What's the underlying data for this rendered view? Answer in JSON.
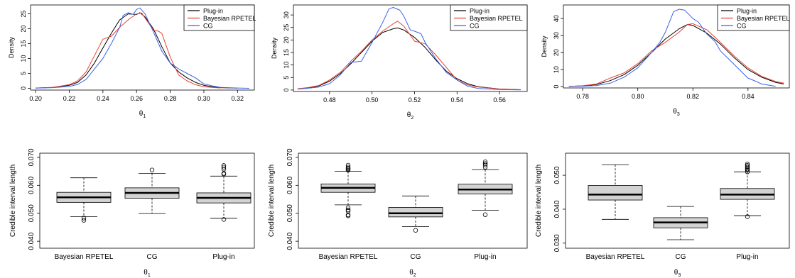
{
  "chart_data": [
    {
      "type": "line",
      "xlabel_base": "θ",
      "xlabel_sub": "1",
      "ylabel": "Density",
      "xlim": [
        0.197,
        0.33
      ],
      "ylim": [
        -0.6,
        28
      ],
      "xticks": [
        0.2,
        0.22,
        0.24,
        0.26,
        0.28,
        0.3,
        0.32
      ],
      "xtick_labels": [
        "0.20",
        "0.22",
        "0.24",
        "0.26",
        "0.28",
        "0.30",
        "0.32"
      ],
      "yticks": [
        0,
        5,
        10,
        15,
        20,
        25
      ],
      "ytick_labels": [
        "0",
        "5",
        "10",
        "15",
        "20",
        "25"
      ],
      "legend_position": "top-right",
      "series": [
        {
          "name": "Plug-in",
          "color": "#000000",
          "x": [
            0.2,
            0.21,
            0.22,
            0.225,
            0.23,
            0.235,
            0.24,
            0.245,
            0.25,
            0.255,
            0.26,
            0.262,
            0.265,
            0.27,
            0.275,
            0.28,
            0.285,
            0.29,
            0.295,
            0.3,
            0.305,
            0.31,
            0.32
          ],
          "y": [
            0.1,
            0.3,
            1.0,
            2.0,
            4.5,
            8.5,
            13.5,
            18.5,
            23.0,
            25.0,
            24.8,
            25.4,
            24.0,
            20.0,
            14.0,
            8.5,
            5.5,
            3.5,
            2.0,
            1.0,
            0.5,
            0.2,
            0.05
          ]
        },
        {
          "name": "Bayesian RPETEL",
          "color": "#e8432e",
          "x": [
            0.2,
            0.21,
            0.22,
            0.225,
            0.23,
            0.235,
            0.24,
            0.245,
            0.25,
            0.255,
            0.26,
            0.263,
            0.267,
            0.27,
            0.273,
            0.275,
            0.28,
            0.285,
            0.29,
            0.295,
            0.3,
            0.31
          ],
          "y": [
            0.1,
            0.3,
            1.2,
            2.5,
            5.5,
            11.0,
            16.5,
            17.5,
            20.5,
            23.0,
            25.0,
            25.3,
            22.0,
            19.5,
            19.2,
            18.5,
            10.5,
            4.5,
            2.5,
            1.2,
            0.5,
            0.1
          ]
        },
        {
          "name": "CG",
          "color": "#3b62e8",
          "x": [
            0.2,
            0.21,
            0.22,
            0.225,
            0.23,
            0.235,
            0.24,
            0.245,
            0.25,
            0.252,
            0.255,
            0.258,
            0.26,
            0.262,
            0.265,
            0.27,
            0.275,
            0.28,
            0.285,
            0.29,
            0.295,
            0.3,
            0.305,
            0.31,
            0.32,
            0.327
          ],
          "y": [
            0.05,
            0.2,
            0.6,
            1.3,
            3.0,
            6.5,
            10.0,
            15.0,
            20.5,
            24.5,
            25.4,
            24.8,
            26.5,
            27.0,
            25.0,
            19.0,
            12.5,
            8.5,
            6.5,
            5.0,
            3.5,
            1.5,
            0.8,
            0.3,
            0.1,
            0.0
          ]
        }
      ]
    },
    {
      "type": "line",
      "xlabel_base": "θ",
      "xlabel_sub": "2",
      "ylabel": "Density",
      "xlim": [
        0.463,
        0.573
      ],
      "ylim": [
        -0.6,
        34
      ],
      "xticks": [
        0.48,
        0.5,
        0.52,
        0.54,
        0.56
      ],
      "xtick_labels": [
        "0.48",
        "0.50",
        "0.52",
        "0.54",
        "0.56"
      ],
      "yticks": [
        0,
        5,
        10,
        15,
        20,
        25,
        30
      ],
      "ytick_labels": [
        "0",
        "5",
        "10",
        "15",
        "20",
        "25",
        "30"
      ],
      "legend_position": "top-right",
      "series": [
        {
          "name": "Plug-in",
          "color": "#000000",
          "x": [
            0.465,
            0.47,
            0.475,
            0.48,
            0.485,
            0.49,
            0.495,
            0.5,
            0.505,
            0.51,
            0.512,
            0.515,
            0.52,
            0.525,
            0.53,
            0.535,
            0.54,
            0.545,
            0.55,
            0.56,
            0.57
          ],
          "y": [
            0.4,
            0.9,
            1.6,
            3.5,
            6.5,
            10.5,
            15.0,
            19.5,
            23.0,
            24.5,
            24.8,
            24.0,
            21.0,
            17.0,
            12.0,
            7.5,
            4.5,
            2.5,
            1.3,
            0.4,
            0.1
          ]
        },
        {
          "name": "Bayesian RPETEL",
          "color": "#e8432e",
          "x": [
            0.465,
            0.47,
            0.475,
            0.48,
            0.485,
            0.49,
            0.495,
            0.5,
            0.505,
            0.51,
            0.512,
            0.515,
            0.52,
            0.525,
            0.53,
            0.535,
            0.54,
            0.545,
            0.55,
            0.56,
            0.57
          ],
          "y": [
            0.5,
            1.0,
            1.8,
            4.0,
            7.0,
            11.5,
            15.5,
            20.0,
            23.5,
            26.5,
            27.5,
            25.5,
            19.5,
            18.5,
            14.0,
            9.0,
            4.0,
            2.0,
            1.2,
            0.4,
            0.1
          ]
        },
        {
          "name": "CG",
          "color": "#3b62e8",
          "x": [
            0.465,
            0.47,
            0.475,
            0.48,
            0.485,
            0.49,
            0.495,
            0.5,
            0.505,
            0.508,
            0.51,
            0.513,
            0.515,
            0.518,
            0.52,
            0.523,
            0.525,
            0.53,
            0.535,
            0.54,
            0.545,
            0.55,
            0.56,
            0.57
          ],
          "y": [
            0.3,
            0.7,
            1.2,
            2.5,
            6.0,
            11.0,
            11.5,
            19.0,
            27.0,
            32.5,
            33.0,
            32.0,
            29.5,
            24.0,
            23.5,
            22.5,
            19.0,
            12.5,
            7.0,
            4.0,
            1.5,
            0.6,
            0.2,
            0.05
          ]
        }
      ]
    },
    {
      "type": "line",
      "xlabel_base": "θ",
      "xlabel_sub": "3",
      "ylabel": "Density",
      "xlim": [
        0.773,
        0.855
      ],
      "ylim": [
        -0.8,
        48
      ],
      "xticks": [
        0.78,
        0.8,
        0.82,
        0.84
      ],
      "xtick_labels": [
        "0.78",
        "0.80",
        "0.82",
        "0.84"
      ],
      "yticks": [
        0,
        10,
        20,
        30,
        40
      ],
      "ytick_labels": [
        "0",
        "10",
        "20",
        "30",
        "40"
      ],
      "legend_position": "top-right",
      "series": [
        {
          "name": "Plug-in",
          "color": "#000000",
          "x": [
            0.775,
            0.78,
            0.785,
            0.79,
            0.795,
            0.8,
            0.805,
            0.81,
            0.815,
            0.818,
            0.82,
            0.825,
            0.83,
            0.835,
            0.84,
            0.845,
            0.85,
            0.853
          ],
          "y": [
            0.1,
            0.4,
            1.2,
            3.5,
            7.0,
            12.5,
            20.0,
            28.0,
            34.0,
            36.5,
            36.0,
            31.5,
            25.0,
            17.0,
            10.0,
            5.5,
            2.5,
            1.5
          ]
        },
        {
          "name": "Bayesian RPETEL",
          "color": "#e8432e",
          "x": [
            0.775,
            0.78,
            0.785,
            0.79,
            0.795,
            0.8,
            0.805,
            0.81,
            0.815,
            0.818,
            0.82,
            0.825,
            0.83,
            0.835,
            0.84,
            0.845,
            0.85,
            0.853
          ],
          "y": [
            0.1,
            0.5,
            1.5,
            5.0,
            8.0,
            13.5,
            21.0,
            26.0,
            32.0,
            36.5,
            37.0,
            33.5,
            26.0,
            18.0,
            11.0,
            6.0,
            3.0,
            2.0
          ]
        },
        {
          "name": "CG",
          "color": "#3b62e8",
          "x": [
            0.775,
            0.78,
            0.785,
            0.79,
            0.795,
            0.8,
            0.805,
            0.808,
            0.81,
            0.813,
            0.815,
            0.817,
            0.82,
            0.822,
            0.825,
            0.828,
            0.83,
            0.835,
            0.84,
            0.843,
            0.845,
            0.85
          ],
          "y": [
            0.1,
            0.2,
            0.6,
            2.0,
            5.5,
            11.0,
            20.0,
            26.0,
            32.0,
            44.0,
            45.5,
            45.0,
            40.0,
            38.0,
            31.0,
            26.5,
            21.0,
            13.0,
            5.0,
            3.0,
            1.5,
            0.2
          ]
        }
      ]
    },
    {
      "type": "box",
      "categories": [
        "Bayesian RPETEL",
        "CG",
        "Plug-in"
      ],
      "xlabel_base": "θ",
      "xlabel_sub": "1",
      "ylabel": "Credible interval length",
      "ylim": [
        0.0375,
        0.0715
      ],
      "yticks": [
        0.04,
        0.05,
        0.06,
        0.07
      ],
      "ytick_labels": [
        "0.040",
        "0.050",
        "0.060",
        "0.070"
      ],
      "boxes": [
        {
          "whisker_low": 0.0488,
          "q1": 0.0539,
          "median": 0.0557,
          "q3": 0.0575,
          "whisker_high": 0.0627,
          "outliers": [
            0.0483,
            0.0475
          ]
        },
        {
          "whisker_low": 0.0499,
          "q1": 0.0554,
          "median": 0.0573,
          "q3": 0.0591,
          "whisker_high": 0.0643,
          "outliers": [
            0.0655
          ]
        },
        {
          "whisker_low": 0.0482,
          "q1": 0.0537,
          "median": 0.0555,
          "q3": 0.0573,
          "whisker_high": 0.0633,
          "outliers": [
            0.064,
            0.0643,
            0.0658,
            0.0665,
            0.0671,
            0.0478
          ]
        }
      ]
    },
    {
      "type": "box",
      "categories": [
        "Bayesian RPETEL",
        "CG",
        "Plug-in"
      ],
      "xlabel_base": "θ",
      "xlabel_sub": "2",
      "ylabel": "Credible interval length",
      "ylim": [
        0.0375,
        0.0715
      ],
      "yticks": [
        0.04,
        0.05,
        0.06,
        0.07
      ],
      "ytick_labels": [
        "0.040",
        "0.050",
        "0.060",
        "0.070"
      ],
      "boxes": [
        {
          "whisker_low": 0.053,
          "q1": 0.0575,
          "median": 0.0591,
          "q3": 0.0605,
          "whisker_high": 0.065,
          "outliers": [
            0.0491,
            0.0494,
            0.0508,
            0.0512,
            0.052,
            0.0654,
            0.0658,
            0.0661,
            0.0665,
            0.0672
          ]
        },
        {
          "whisker_low": 0.0452,
          "q1": 0.0487,
          "median": 0.05,
          "q3": 0.0521,
          "whisker_high": 0.0562,
          "outliers": [
            0.0439
          ]
        },
        {
          "whisker_low": 0.0511,
          "q1": 0.0569,
          "median": 0.0585,
          "q3": 0.0604,
          "whisker_high": 0.0656,
          "outliers": [
            0.0495,
            0.0665,
            0.0673,
            0.0678,
            0.0684
          ]
        }
      ]
    },
    {
      "type": "box",
      "categories": [
        "Bayesian RPETEL",
        "CG",
        "Plug-in"
      ],
      "xlabel_base": "θ",
      "xlabel_sub": "3",
      "ylabel": "Credible interval length",
      "ylim": [
        0.0285,
        0.0565
      ],
      "yticks": [
        0.03,
        0.04,
        0.05
      ],
      "ytick_labels": [
        "0.030",
        "0.040",
        "0.050"
      ],
      "boxes": [
        {
          "whisker_low": 0.037,
          "q1": 0.0427,
          "median": 0.0443,
          "q3": 0.047,
          "whisker_high": 0.0531,
          "outliers": []
        },
        {
          "whisker_low": 0.031,
          "q1": 0.0345,
          "median": 0.0361,
          "q3": 0.0375,
          "whisker_high": 0.0408,
          "outliers": []
        },
        {
          "whisker_low": 0.0381,
          "q1": 0.0429,
          "median": 0.0443,
          "q3": 0.0461,
          "whisker_high": 0.051,
          "outliers": [
            0.0378,
            0.051,
            0.0515,
            0.0518,
            0.0521,
            0.0525,
            0.0529,
            0.0533
          ]
        }
      ]
    }
  ]
}
